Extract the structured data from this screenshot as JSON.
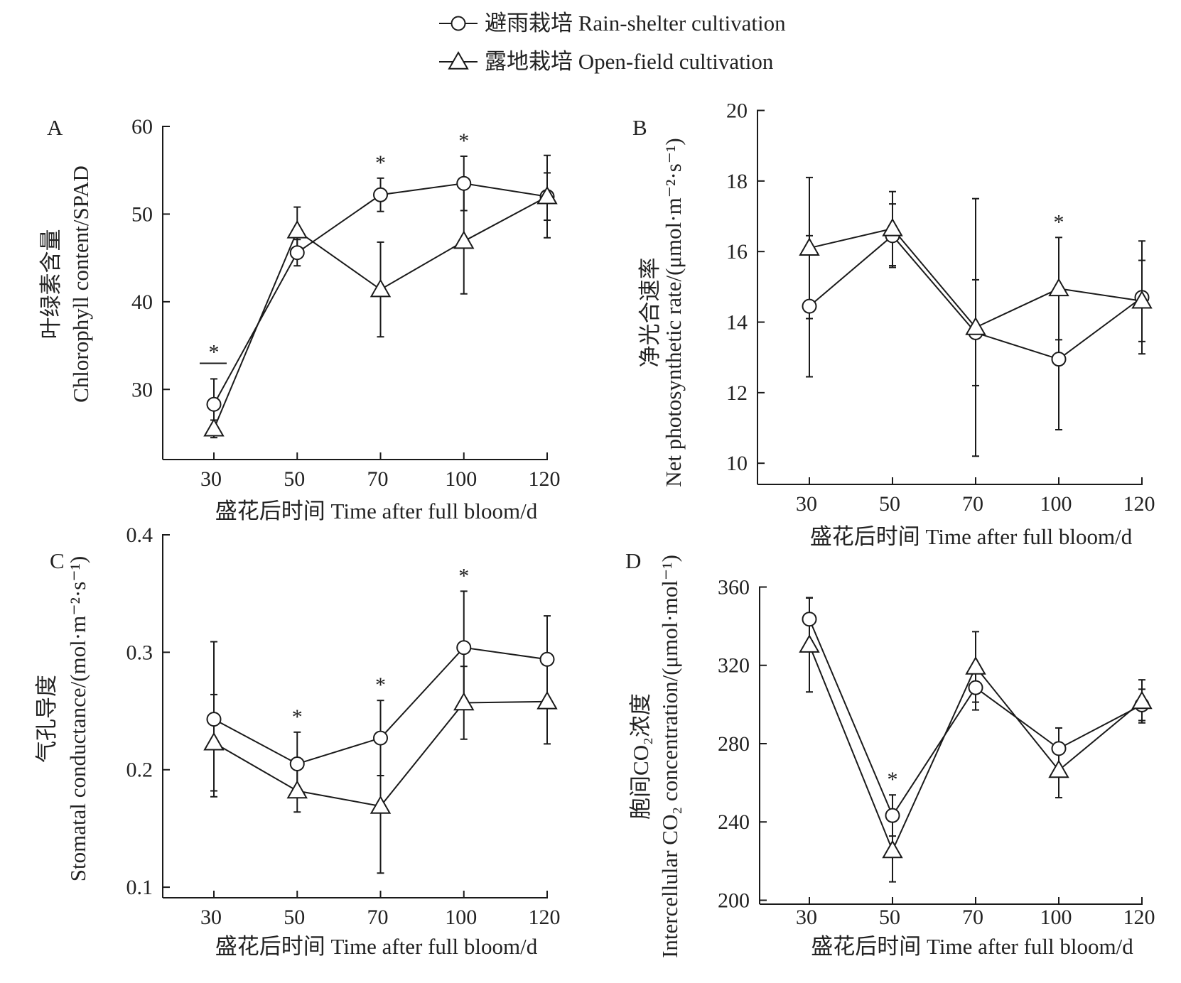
{
  "legend": {
    "position": "top-center",
    "items": [
      {
        "label": "避雨栽培 Rain-shelter cultivation",
        "marker": "circle"
      },
      {
        "label": "露地栽培 Open-field cultivation",
        "marker": "triangle"
      }
    ]
  },
  "colors": {
    "line": "#1a1a1a",
    "background": "#ffffff"
  },
  "chart_data": [
    {
      "type": "line",
      "panel": "A",
      "categories": [
        "30",
        "50",
        "70",
        "100",
        "120"
      ],
      "xlabel": "盛花后时间 Time after full bloom/d",
      "ylabel_cn": "叶绿素含量",
      "ylabel": "Chlorophyll content/SPAD",
      "ylim": [
        22,
        60
      ],
      "yticks": [
        "30",
        "40",
        "50",
        "60"
      ],
      "series": [
        {
          "name": "避雨栽培 Rain-shelter cultivation",
          "marker": "circle",
          "values": [
            28.3,
            45.6,
            52.2,
            53.5,
            52.0
          ],
          "err": [
            2.9,
            1.5,
            1.9,
            3.1,
            4.7
          ]
        },
        {
          "name": "露地栽培 Open-field cultivation",
          "marker": "triangle",
          "values": [
            25.5,
            48.1,
            41.4,
            46.9,
            52.0
          ],
          "err": [
            1.0,
            2.7,
            5.4,
            6.0,
            2.7
          ]
        }
      ],
      "significance": [
        "*",
        "",
        "*",
        "*",
        ""
      ],
      "significance_bar_at": "30"
    },
    {
      "type": "line",
      "panel": "B",
      "categories": [
        "30",
        "50",
        "70",
        "100",
        "120"
      ],
      "xlabel": "盛花后时间 Time after full bloom/d",
      "ylabel_cn": "净光合速率",
      "ylabel": "Net photosynthetic rate/(μmol·m⁻²·s⁻¹)",
      "ylim": [
        9.4,
        20
      ],
      "yticks": [
        "10",
        "12",
        "14",
        "16",
        "18",
        "20"
      ],
      "series": [
        {
          "name": "避雨栽培 Rain-shelter cultivation",
          "marker": "circle",
          "values": [
            14.45,
            16.45,
            13.7,
            12.95,
            14.7
          ],
          "err": [
            2.0,
            0.9,
            1.5,
            2.0,
            1.6
          ]
        },
        {
          "name": "露地栽培 Open-field cultivation",
          "marker": "triangle",
          "values": [
            16.1,
            16.65,
            13.85,
            14.95,
            14.6
          ],
          "err": [
            2.0,
            1.05,
            3.65,
            1.45,
            1.15
          ]
        }
      ],
      "significance": [
        "",
        "",
        "",
        "*",
        ""
      ]
    },
    {
      "type": "line",
      "panel": "C",
      "categories": [
        "30",
        "50",
        "70",
        "100",
        "120"
      ],
      "xlabel": "盛花后时间 Time after full bloom/d",
      "ylabel_cn": "气孔导度",
      "ylabel": "Stomatal conductance/(mol·m⁻²·s⁻¹)",
      "ylim": [
        0.091,
        0.4
      ],
      "yticks": [
        "0.1",
        "0.2",
        "0.3",
        "0.4"
      ],
      "series": [
        {
          "name": "避雨栽培 Rain-shelter cultivation",
          "marker": "circle",
          "values": [
            0.243,
            0.205,
            0.227,
            0.304,
            0.294
          ],
          "err": [
            0.066,
            0.027,
            0.032,
            0.048,
            0.037
          ]
        },
        {
          "name": "露地栽培 Open-field cultivation",
          "marker": "triangle",
          "values": [
            0.223,
            0.182,
            0.169,
            0.257,
            0.258
          ],
          "err": [
            0.041,
            0.018,
            0.057,
            0.031,
            0.036
          ]
        }
      ],
      "significance": [
        "",
        "*",
        "*",
        "*",
        ""
      ]
    },
    {
      "type": "line",
      "panel": "D",
      "categories": [
        "30",
        "50",
        "70",
        "100",
        "120"
      ],
      "xlabel": "盛花后时间 Time after full bloom/d",
      "ylabel_cn": "胞间CO₂浓度",
      "ylabel": "Intercellular CO₂ concentration/(μmol·mol⁻¹)",
      "ylim": [
        198,
        360
      ],
      "yticks": [
        "200",
        "240",
        "280",
        "320",
        "360"
      ],
      "series": [
        {
          "name": "避雨栽培 Rain-shelter cultivation",
          "marker": "circle",
          "values": [
            343.6,
            243.3,
            308.6,
            277.5,
            299.8
          ],
          "err": [
            11,
            10.5,
            11.4,
            10.5,
            8
          ]
        },
        {
          "name": "露地栽培 Open-field cultivation",
          "marker": "triangle",
          "values": [
            330.4,
            225.4,
            319.2,
            266.4,
            301.6
          ],
          "err": [
            24,
            16,
            18,
            14,
            11
          ]
        }
      ],
      "significance": [
        "",
        "*",
        "",
        "",
        ""
      ]
    }
  ]
}
